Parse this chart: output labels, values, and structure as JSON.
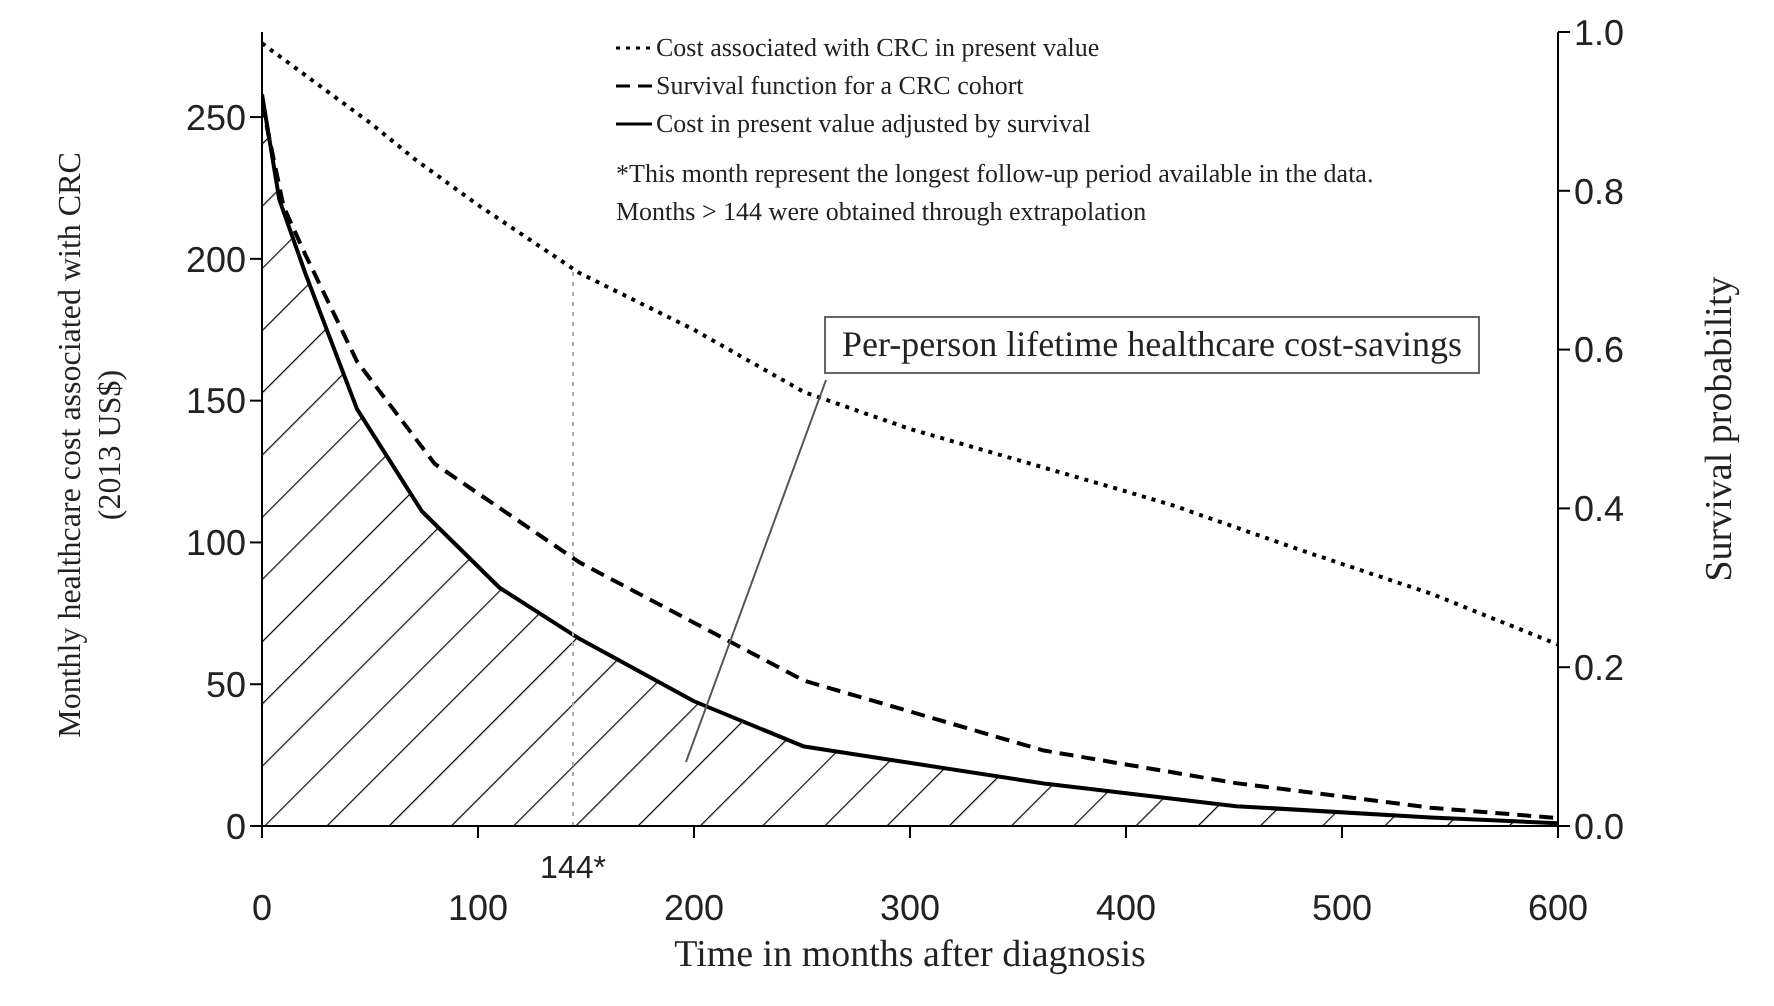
{
  "chart_data": {
    "type": "line",
    "xlabel": "Time in months after diagnosis",
    "ylabel": "Monthly healthcare cost associated with CRC\n(2013 US$)",
    "y2label": "Survival probability",
    "legend": "top",
    "marker": "none",
    "xlim": [
      0,
      600
    ],
    "xticks": [
      0,
      100,
      200,
      300,
      400,
      500,
      600
    ],
    "ylim": [
      0,
      280
    ],
    "yticks": [
      0,
      50,
      100,
      150,
      200,
      250
    ],
    "y2lim": [
      0,
      1
    ],
    "y2ticks": [
      {
        "value": 0,
        "label": "0.0"
      },
      0.2,
      0.4,
      0.6,
      0.8,
      {
        "value": 1,
        "label": "1.0"
      }
    ],
    "series": [
      {
        "name": "Cost associated with CRC in present value",
        "color": "#000000",
        "line_style": "dotted",
        "x": [
          0,
          25,
          50,
          71,
          100,
          147,
          200,
          251,
          300,
          332,
          400,
          422,
          482,
          541,
          600
        ],
        "values": [
          276,
          262,
          248,
          235,
          219,
          195,
          175,
          153,
          140,
          133,
          118,
          113,
          97,
          82,
          64
        ]
      },
      {
        "name": "Survival function for a CRC cohort",
        "color": "#000000",
        "line_style": "dashed",
        "axis": "y2",
        "x": [
          0,
          10,
          20,
          44,
          80,
          147,
          251,
          362,
          451,
          541,
          600
        ],
        "values": [
          0.91,
          0.78,
          0.72,
          0.585,
          0.456,
          0.332,
          0.183,
          0.095,
          0.054,
          0.023,
          0.01
        ]
      },
      {
        "name": "Cost in present value  adjusted by survival",
        "type": "area",
        "color": "#000000",
        "line_style": "solid",
        "x": [
          0,
          8,
          20,
          44,
          74,
          110,
          147,
          200,
          251,
          362,
          451,
          541,
          600
        ],
        "values": [
          258,
          221,
          195,
          147,
          111,
          84,
          66,
          44,
          28,
          15,
          7,
          3,
          1
        ]
      }
    ],
    "ref_lines": [
      {
        "axis": "x",
        "value": 144,
        "label": "144*",
        "color": "#aaaaaa",
        "line_style": "dotted"
      }
    ],
    "annotations": [
      "*This month represent the longest follow-up period available  in the data.  Months > 144 were obtained through extrapolation",
      "Per-person lifetime healthcare cost-savings"
    ]
  }
}
